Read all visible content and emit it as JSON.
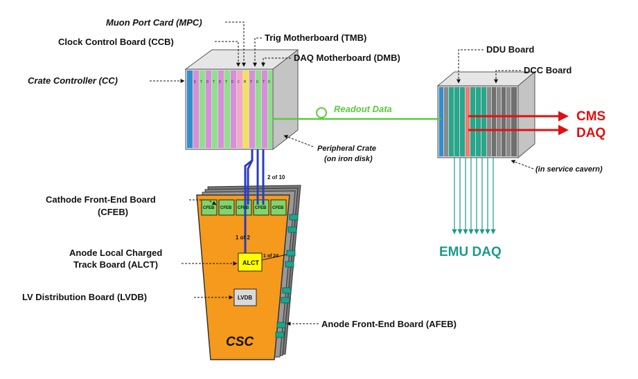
{
  "labels": {
    "mpc": "Muon Port Card (MPC)",
    "ccb": "Clock Control Board (CCB)",
    "tmb": "Trig Motherboard (TMB)",
    "dmb": "DAQ Motherboard (DMB)",
    "cc": "Crate Controller (CC)",
    "readout": "Readout Data",
    "peripheral_line1": "Peripheral Crate",
    "peripheral_line2": "(on iron disk)",
    "ddu": "DDU Board",
    "dcc": "DCC Board",
    "service": "(in service cavern)",
    "cms": "CMS",
    "daq": "DAQ",
    "emu_daq": "EMU DAQ",
    "cfeb_line1": "Cathode Front-End Board",
    "cfeb_line2": "(CFEB)",
    "alct_line1": "Anode Local Charged",
    "alct_line2": "Track  Board (ALCT)",
    "lvdb": "LV Distribution Board (LVDB)",
    "afeb": "Anode Front-End Board (AFEB)",
    "two_of_ten": "2 of 10",
    "one_of_two": "1 of 2",
    "one_of_24": "1 of 24",
    "csc": "CSC",
    "alct_box": "ALCT",
    "lvdb_box": "LVDB",
    "cfeb_box": "CFEB"
  },
  "colors": {
    "readout_green": "#5cc93a",
    "arrow_red": "#e01010",
    "emu_teal": "#1a9a8a",
    "csc_orange": "#f59a1c",
    "cable_blue": "#2a3cc0",
    "crate_gray": "#b8b8b8"
  }
}
